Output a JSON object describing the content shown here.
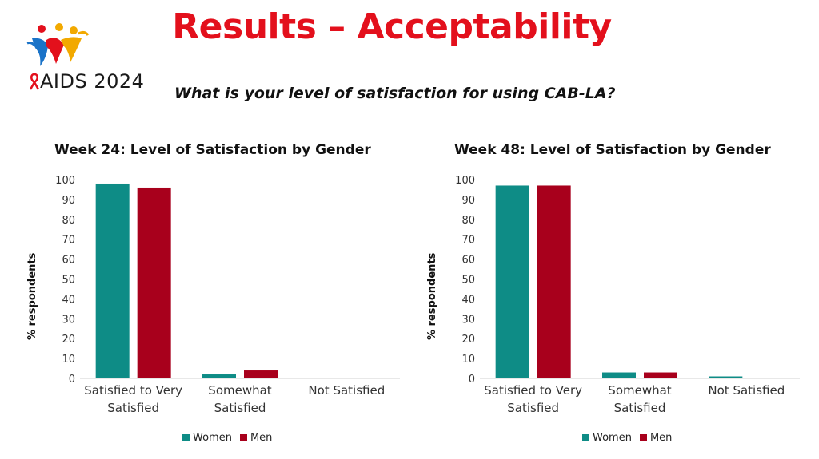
{
  "header": {
    "title": "Results – Acceptability",
    "subtitle": "What is your level of satisfaction for using CAB-LA?",
    "logo_text": "AIDS 2024"
  },
  "colors": {
    "women": "#0e8c86",
    "men": "#a8001c",
    "title": "#e3101c"
  },
  "chart_data": [
    {
      "type": "bar",
      "title": "Week 24: Level of Satisfaction by Gender",
      "ylabel": "% respondents",
      "xlabel": "",
      "ylim": [
        0,
        100
      ],
      "yticks": [
        "0",
        "10",
        "20",
        "30",
        "40",
        "50",
        "60",
        "70",
        "80",
        "90",
        "100"
      ],
      "categories": [
        [
          "Satisfied to Very",
          "Satisfied"
        ],
        [
          "Somewhat",
          "Satisfied"
        ],
        [
          "Not Satisfied"
        ]
      ],
      "series": [
        {
          "name": "Women",
          "values": [
            98,
            2,
            0
          ]
        },
        {
          "name": "Men",
          "values": [
            96,
            4,
            0
          ]
        }
      ],
      "legend": "bottom",
      "grid": false
    },
    {
      "type": "bar",
      "title": "Week 48: Level of Satisfaction by Gender",
      "ylabel": "% respondents",
      "xlabel": "",
      "ylim": [
        0,
        100
      ],
      "yticks": [
        "0",
        "10",
        "20",
        "30",
        "40",
        "50",
        "60",
        "70",
        "80",
        "90",
        "100"
      ],
      "categories": [
        [
          "Satisfied to Very",
          "Satisfied"
        ],
        [
          "Somewhat",
          "Satisfied"
        ],
        [
          "Not Satisfied"
        ]
      ],
      "series": [
        {
          "name": "Women",
          "values": [
            97,
            3,
            1
          ]
        },
        {
          "name": "Men",
          "values": [
            97,
            3,
            0
          ]
        }
      ],
      "legend": "bottom",
      "grid": false
    }
  ]
}
